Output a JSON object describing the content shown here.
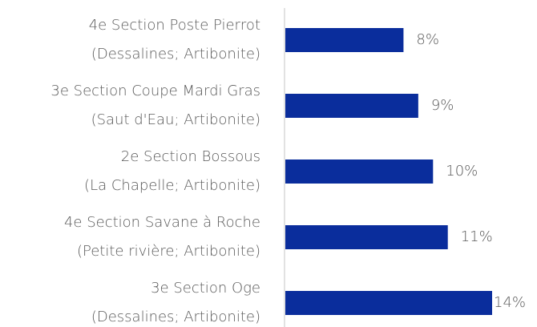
{
  "chart_data": {
    "type": "barh",
    "categories": [
      [
        "4e Section Poste Pierrot",
        "(Dessalines; Artibonite)"
      ],
      [
        "3e Section Coupe Mardi Gras",
        "(Saut d'Eau; Artibonite)"
      ],
      [
        "2e Section Bossous",
        "(La Chapelle; Artibonite)"
      ],
      [
        "4e Section Savane à Roche",
        "(Petite rivière; Artibonite)"
      ],
      [
        "3e Section Oge",
        "(Dessalines; Artibonite)"
      ]
    ],
    "values": [
      8,
      9,
      10,
      11,
      14
    ],
    "value_labels": [
      "8%",
      "9%",
      "10%",
      "11%",
      "14%"
    ],
    "color": "#0a2d9c"
  }
}
